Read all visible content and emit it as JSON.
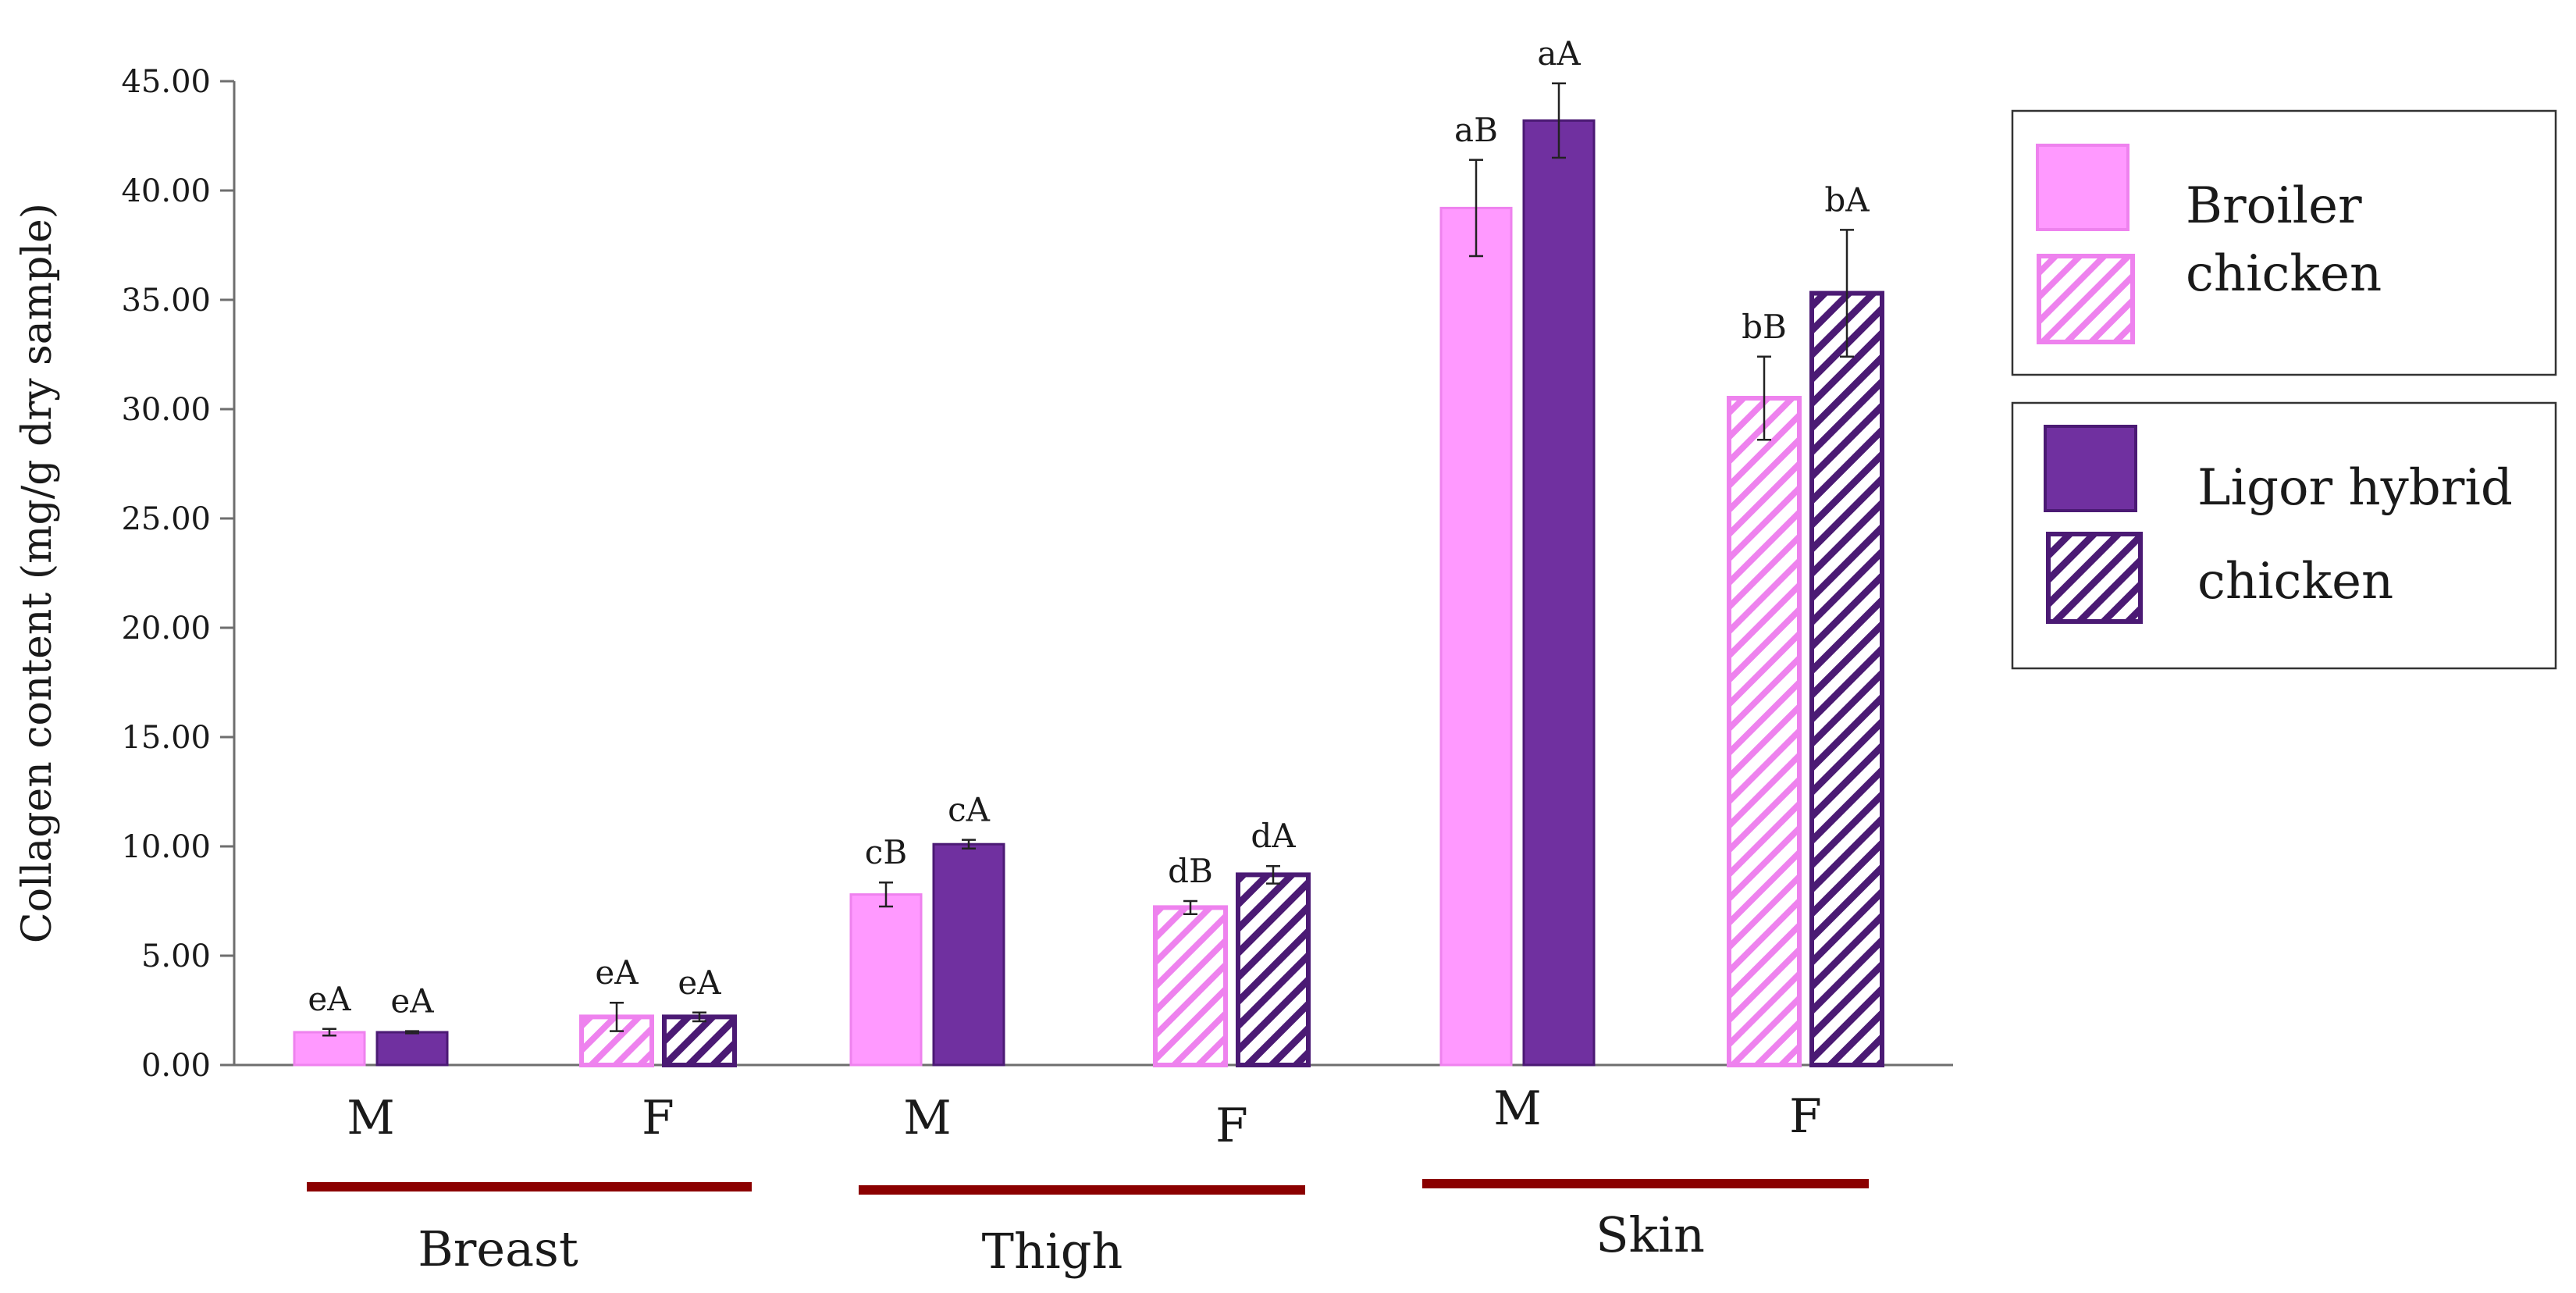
{
  "chart_data": {
    "type": "bar",
    "ylabel": "Collagen content  (mg/g dry sample)",
    "ylim": [
      0,
      45
    ],
    "ytick_step": 5,
    "ytick_labels": [
      "0.00",
      "5.00",
      "10.00",
      "15.00",
      "20.00",
      "25.00",
      "30.00",
      "35.00",
      "40.00",
      "45.00"
    ],
    "grid": false,
    "groups": [
      {
        "label": "Breast",
        "sexes": [
          {
            "sex": "M",
            "bars": [
              {
                "series": "Broiler chicken",
                "value": 1.5,
                "error": 0.15,
                "sig": "eA",
                "hatched": false
              },
              {
                "series": "Ligor hybrid chicken",
                "value": 1.5,
                "error": 0.05,
                "sig": "eA",
                "hatched": false
              }
            ]
          },
          {
            "sex": "F",
            "bars": [
              {
                "series": "Broiler chicken",
                "value": 2.2,
                "error": 0.65,
                "sig": "eA",
                "hatched": true
              },
              {
                "series": "Ligor hybrid chicken",
                "value": 2.2,
                "error": 0.2,
                "sig": "eA",
                "hatched": true
              }
            ]
          }
        ]
      },
      {
        "label": "Thigh",
        "sexes": [
          {
            "sex": "M",
            "bars": [
              {
                "series": "Broiler chicken",
                "value": 7.8,
                "error": 0.55,
                "sig": "cB",
                "hatched": false
              },
              {
                "series": "Ligor hybrid chicken",
                "value": 10.1,
                "error": 0.2,
                "sig": "cA",
                "hatched": false
              }
            ]
          },
          {
            "sex": "F",
            "bars": [
              {
                "series": "Broiler chicken",
                "value": 7.2,
                "error": 0.3,
                "sig": "dB",
                "hatched": true
              },
              {
                "series": "Ligor hybrid chicken",
                "value": 8.7,
                "error": 0.4,
                "sig": "dA",
                "hatched": true
              }
            ]
          }
        ]
      },
      {
        "label": "Skin",
        "sexes": [
          {
            "sex": "M",
            "bars": [
              {
                "series": "Broiler chicken",
                "value": 39.2,
                "error": 2.2,
                "sig": "aB",
                "hatched": false
              },
              {
                "series": "Ligor hybrid chicken",
                "value": 43.2,
                "error": 1.7,
                "sig": "aA",
                "hatched": false
              }
            ]
          },
          {
            "sex": "F",
            "bars": [
              {
                "series": "Broiler chicken",
                "value": 30.5,
                "error": 1.9,
                "sig": "bB",
                "hatched": true
              },
              {
                "series": "Ligor hybrid chicken",
                "value": 35.3,
                "error": 2.9,
                "sig": "bA",
                "hatched": true
              }
            ]
          }
        ]
      }
    ],
    "legend": {
      "placement": "right",
      "entries": [
        {
          "series": "Broiler chicken",
          "line1": "Broiler",
          "line2": "chicken"
        },
        {
          "series": "Ligor hybrid chicken",
          "line1": "Ligor hybrid",
          "line2": "chicken"
        }
      ]
    },
    "colors": {
      "Broiler chicken": {
        "fill": "#ff99ff",
        "edge": "#ee82ee"
      },
      "Ligor hybrid chicken": {
        "fill": "#7030a0",
        "edge": "#4b1a74"
      },
      "group_underline": "#8b0000",
      "axis": "#6e6e6e"
    }
  }
}
